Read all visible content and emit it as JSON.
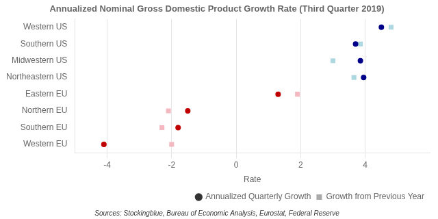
{
  "chart_data": {
    "type": "dot",
    "orientation": "horizontal",
    "title": "Annualized Nominal Gross Domestic Product Growth Rate (Third Quarter 2019)",
    "x_label": "Rate",
    "source": "Sources: Stockingblue, Bureau of Economic Analysis, Eurostat, Federal Reserve",
    "categories": [
      "Western US",
      "Southern US",
      "Midwestern US",
      "Northeastern US",
      "Eastern EU",
      "Northern EU",
      "Southern EU",
      "Western EU"
    ],
    "series": [
      {
        "name": "Annualized Quarterly Growth",
        "marker": "circle",
        "colors": [
          "#00008b",
          "#00008b",
          "#00008b",
          "#00008b",
          "#c00000",
          "#c00000",
          "#c00000",
          "#c00000"
        ],
        "values": [
          4.5,
          3.7,
          3.85,
          3.95,
          1.3,
          -1.5,
          -1.8,
          -4.1
        ]
      },
      {
        "name": "Growth from Previous Year",
        "marker": "square",
        "colors": [
          "#aed8e0",
          "#aed8e0",
          "#aed8e0",
          "#aed8e0",
          "#f4b8c1",
          "#f4b8c1",
          "#f4b8c1",
          "#f4b8c1"
        ],
        "values": [
          4.8,
          3.85,
          3.0,
          3.65,
          1.9,
          -2.1,
          -2.3,
          -2.0
        ]
      }
    ],
    "xlim": [
      -5,
      6
    ],
    "xticks": [
      -4,
      -2,
      0,
      2,
      4
    ],
    "grid": true,
    "legend": "lower right"
  }
}
